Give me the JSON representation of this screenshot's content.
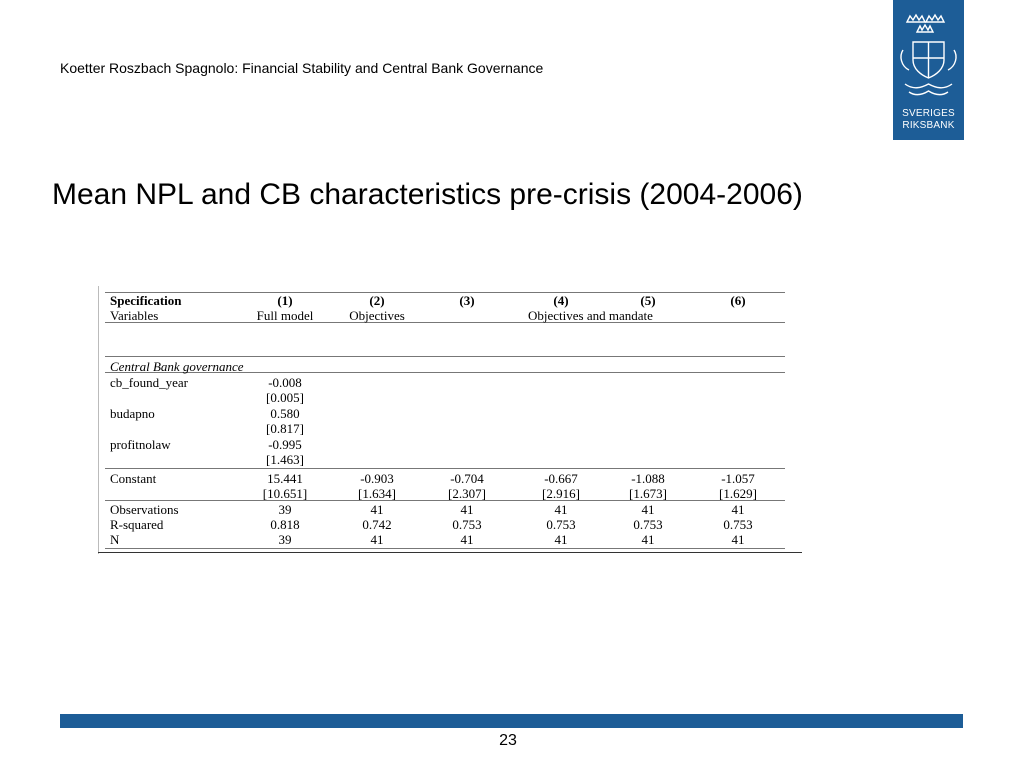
{
  "header": {
    "text": "Koetter Roszbach Spagnolo: Financial Stability and Central Bank Governance"
  },
  "logo": {
    "line1": "SVERIGES",
    "line2": "RIKSBANK",
    "color": "#1d5d97"
  },
  "slide": {
    "title": "Mean NPL and CB characteristics pre-crisis (2004-2006)"
  },
  "table": {
    "header1": {
      "label": "Specification",
      "cols": [
        "(1)",
        "(2)",
        "(3)",
        "(4)",
        "(5)",
        "(6)"
      ]
    },
    "header2": {
      "label": "Variables",
      "col1": "Full model",
      "col2": "Objectives",
      "col46": "Objectives and mandate"
    },
    "section": "Central Bank governance",
    "rows": {
      "cb_found_year": {
        "label": "cb_found_year",
        "coef": "-0.008",
        "se": "[0.005]"
      },
      "budapno": {
        "label": "budapno",
        "coef": "0.580",
        "se": "[0.817]"
      },
      "profitnolaw": {
        "label": "profitnolaw",
        "coef": "-0.995",
        "se": "[1.463]"
      }
    },
    "constant": {
      "label": "Constant",
      "coefs": [
        "15.441",
        "-0.903",
        "-0.704",
        "-0.667",
        "-1.088",
        "-1.057"
      ],
      "ses": [
        "[10.651]",
        "[1.634]",
        "[2.307]",
        "[2.916]",
        "[1.673]",
        "[1.629]"
      ]
    },
    "observations": {
      "label": "Observations",
      "values": [
        "39",
        "41",
        "41",
        "41",
        "41",
        "41"
      ]
    },
    "r_squared": {
      "label": "R-squared",
      "values": [
        "0.818",
        "0.742",
        "0.753",
        "0.753",
        "0.753",
        "0.753"
      ]
    },
    "n": {
      "label": "N",
      "values": [
        "39",
        "41",
        "41",
        "41",
        "41",
        "41"
      ]
    }
  },
  "footer": {
    "page_number": "23",
    "bar_color": "#1d5d97"
  }
}
